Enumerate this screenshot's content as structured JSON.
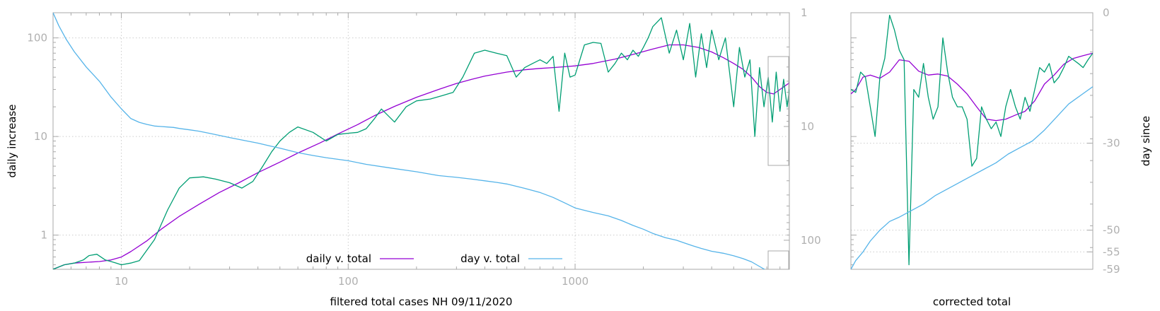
{
  "colors": {
    "smooth": "#9400d3",
    "raw": "#009e73",
    "day": "#56b4e9",
    "axis": "#a8a8a8",
    "tick_text": "#b0b0b0",
    "grid": "#cccccc"
  },
  "chart_data": [
    {
      "type": "line",
      "xlabel": "filtered total cases NH 09/11/2020",
      "ylabel": "daily increase",
      "y2label": "",
      "xscale": "log",
      "yscale": "log",
      "y2scale": "log",
      "y2reversed": true,
      "xlim": [
        5.0,
        8800
      ],
      "ylim": [
        0.45,
        180
      ],
      "y2lim": [
        1,
        180
      ],
      "xticks": [
        10,
        100,
        1000
      ],
      "xtick_labels": [
        "10",
        "100",
        "1000"
      ],
      "yticks": [
        1,
        10,
        100
      ],
      "ytick_labels": [
        "1",
        "10",
        "100"
      ],
      "y2ticks": [
        1,
        10,
        100
      ],
      "y2tick_labels": [
        "1",
        "10",
        "100"
      ],
      "grid": true,
      "legend_position": "bottom-center",
      "legend": [
        "daily v. total",
        "day v. total"
      ],
      "series": [
        {
          "name": "daily v. total",
          "axis": "y",
          "color_key": "smooth",
          "x": [
            5.0,
            5.6,
            6.2,
            7,
            8,
            9,
            10,
            11,
            13,
            15,
            18,
            22,
            27,
            33,
            40,
            50,
            60,
            75,
            90,
            110,
            130,
            160,
            200,
            250,
            300,
            350,
            400,
            500,
            600,
            700,
            800,
            900,
            1000,
            1200,
            1500,
            1800,
            2200,
            2600,
            3000,
            3500,
            4000,
            4500,
            5000,
            5500,
            6000,
            6500,
            7000,
            7500,
            8000,
            8800
          ],
          "y": [
            0.45,
            0.5,
            0.52,
            0.53,
            0.54,
            0.56,
            0.6,
            0.68,
            0.88,
            1.15,
            1.55,
            2.05,
            2.7,
            3.4,
            4.3,
            5.5,
            6.8,
            8.6,
            10.6,
            13.2,
            16.2,
            20.2,
            25.0,
            30.0,
            34.5,
            38.0,
            41.0,
            45.0,
            47.5,
            49.0,
            50.0,
            51.0,
            52.0,
            55.0,
            61.0,
            68.0,
            77.0,
            85.0,
            85.0,
            80.0,
            72.0,
            63.0,
            55.0,
            48.0,
            40.0,
            32.0,
            28.0,
            27.0,
            30.0,
            35.0
          ]
        },
        {
          "name": "",
          "axis": "y",
          "color_key": "raw",
          "x": [
            5.0,
            5.6,
            6.2,
            6.8,
            7.2,
            7.8,
            8.5,
            9.0,
            9.5,
            10.0,
            11,
            12,
            14,
            16,
            18,
            20,
            23,
            26,
            30,
            34,
            38,
            42,
            46,
            50,
            55,
            60,
            70,
            80,
            90,
            100,
            110,
            120,
            130,
            140,
            160,
            180,
            200,
            230,
            260,
            290,
            320,
            360,
            400,
            450,
            500,
            550,
            600,
            650,
            700,
            750,
            800,
            850,
            900,
            950,
            1000,
            1100,
            1200,
            1300,
            1400,
            1500,
            1600,
            1700,
            1800,
            1900,
            2000,
            2100,
            2200,
            2400,
            2600,
            2800,
            3000,
            3200,
            3400,
            3600,
            3800,
            4000,
            4300,
            4600,
            5000,
            5300,
            5600,
            5900,
            6200,
            6500,
            6800,
            7100,
            7400,
            7700,
            8000,
            8300,
            8600,
            8800
          ],
          "y": [
            0.45,
            0.5,
            0.52,
            0.56,
            0.62,
            0.64,
            0.56,
            0.54,
            0.52,
            0.5,
            0.52,
            0.55,
            0.9,
            1.8,
            3.0,
            3.8,
            3.9,
            3.7,
            3.4,
            3.0,
            3.5,
            5.0,
            7.0,
            9.0,
            11.0,
            12.5,
            11.0,
            9.0,
            10.5,
            10.8,
            11.0,
            12.0,
            15.0,
            19.0,
            14.0,
            20.0,
            23.0,
            24.0,
            26.0,
            28.0,
            40.0,
            70.0,
            75.0,
            70.0,
            66.0,
            40.0,
            50.0,
            55.0,
            60.0,
            55.0,
            65.0,
            18.0,
            70.0,
            40.0,
            42.0,
            85.0,
            90.0,
            88.0,
            45.0,
            55.0,
            70.0,
            60.0,
            75.0,
            65.0,
            80.0,
            100.0,
            130.0,
            160.0,
            70.0,
            120.0,
            60.0,
            140.0,
            40.0,
            110.0,
            50.0,
            120.0,
            60.0,
            100.0,
            20.0,
            80.0,
            40.0,
            60.0,
            10.0,
            50.0,
            20.0,
            40.0,
            14.0,
            45.0,
            18.0,
            38.0,
            20.0,
            30.0
          ]
        },
        {
          "name": "day v. total",
          "axis": "y2",
          "color_key": "day",
          "x": [
            5.0,
            5.3,
            5.7,
            6.2,
            7,
            8,
            9,
            10,
            11,
            12,
            13,
            14,
            15,
            16,
            17,
            18,
            20,
            22,
            25,
            30,
            35,
            40,
            45,
            50,
            60,
            70,
            80,
            100,
            120,
            150,
            200,
            250,
            300,
            350,
            400,
            450,
            500,
            600,
            700,
            800,
            900,
            1000,
            1200,
            1400,
            1600,
            1800,
            2000,
            2200,
            2500,
            2800,
            3000,
            3300,
            3600,
            4000,
            4500,
            5000,
            5500,
            6000,
            6500,
            7000,
            7500,
            8000,
            8500,
            8800
          ],
          "y": [
            1.0,
            1.3,
            1.7,
            2.2,
            3.0,
            4.0,
            5.5,
            7.0,
            8.5,
            9.2,
            9.6,
            9.9,
            10.0,
            10.1,
            10.2,
            10.4,
            10.7,
            11.0,
            11.6,
            12.5,
            13.3,
            14.0,
            14.8,
            15.5,
            17.0,
            18.0,
            18.8,
            20.0,
            21.5,
            23.0,
            25.0,
            27.0,
            28.0,
            29.0,
            30.0,
            31.0,
            32.0,
            35.0,
            38.0,
            42.0,
            47.0,
            52.0,
            57.0,
            61.0,
            67.0,
            74.0,
            80.0,
            87.0,
            95.0,
            100.0,
            105.0,
            112.0,
            118.0,
            125.0,
            130.0,
            137.0,
            145.0,
            155.0,
            170.0,
            185.0,
            200.0,
            215.0,
            225.0,
            232.0
          ]
        }
      ]
    },
    {
      "type": "line",
      "xlabel": "corrected total",
      "ylabel": "",
      "y2label": "day since",
      "xlim": [
        0,
        1
      ],
      "ylim": [
        0.45,
        180
      ],
      "yscale": "log",
      "y2lim": [
        -59,
        0
      ],
      "y2ticks": [
        0,
        -30,
        -50,
        -55,
        -59
      ],
      "y2tick_labels": [
        "0",
        "-30",
        "-50",
        "-55",
        "-59"
      ],
      "grid": true,
      "series": [
        {
          "name": "",
          "axis": "y",
          "color_key": "smooth",
          "x": [
            0.0,
            0.02,
            0.05,
            0.08,
            0.12,
            0.16,
            0.2,
            0.24,
            0.28,
            0.32,
            0.36,
            0.4,
            0.44,
            0.48,
            0.52,
            0.56,
            0.6,
            0.64,
            0.68,
            0.72,
            0.76,
            0.8,
            0.84,
            0.88,
            0.92,
            0.96,
            1.0
          ],
          "y": [
            27,
            30,
            40,
            42,
            39,
            45,
            60,
            58,
            46,
            42,
            43,
            41,
            34,
            27,
            20,
            15,
            14.5,
            15,
            16.5,
            18,
            23,
            34,
            42,
            54,
            62,
            66,
            70
          ]
        },
        {
          "name": "",
          "axis": "y",
          "color_key": "raw",
          "x": [
            0.0,
            0.02,
            0.04,
            0.06,
            0.08,
            0.1,
            0.12,
            0.14,
            0.16,
            0.18,
            0.2,
            0.22,
            0.24,
            0.26,
            0.28,
            0.3,
            0.32,
            0.34,
            0.36,
            0.38,
            0.4,
            0.42,
            0.44,
            0.46,
            0.48,
            0.5,
            0.52,
            0.54,
            0.56,
            0.58,
            0.6,
            0.62,
            0.64,
            0.66,
            0.68,
            0.7,
            0.72,
            0.74,
            0.76,
            0.78,
            0.8,
            0.82,
            0.84,
            0.86,
            0.88,
            0.9,
            0.92,
            0.94,
            0.96,
            0.98,
            1.0
          ],
          "y": [
            30,
            28,
            45,
            40,
            20,
            10,
            40,
            62,
            170,
            120,
            75,
            60,
            0.5,
            30,
            25,
            55,
            25,
            15,
            20,
            100,
            45,
            25,
            20,
            20,
            15,
            5,
            6,
            20,
            15,
            12,
            14,
            10,
            20,
            30,
            20,
            15,
            25,
            18,
            30,
            50,
            45,
            55,
            35,
            40,
            50,
            65,
            60,
            55,
            50,
            60,
            70
          ]
        },
        {
          "name": "",
          "axis": "y2",
          "color_key": "day",
          "x": [
            0.0,
            0.02,
            0.05,
            0.08,
            0.12,
            0.16,
            0.2,
            0.25,
            0.3,
            0.35,
            0.4,
            0.45,
            0.5,
            0.55,
            0.6,
            0.65,
            0.7,
            0.75,
            0.8,
            0.85,
            0.9,
            0.95,
            1.0
          ],
          "y": [
            -59,
            -57,
            -55,
            -52.5,
            -50,
            -48,
            -47,
            -45.5,
            -44,
            -42,
            -40.5,
            -39,
            -37.5,
            -36,
            -34.5,
            -32.5,
            -31,
            -29.5,
            -27,
            -24,
            -21,
            -19,
            -17
          ]
        }
      ]
    }
  ]
}
